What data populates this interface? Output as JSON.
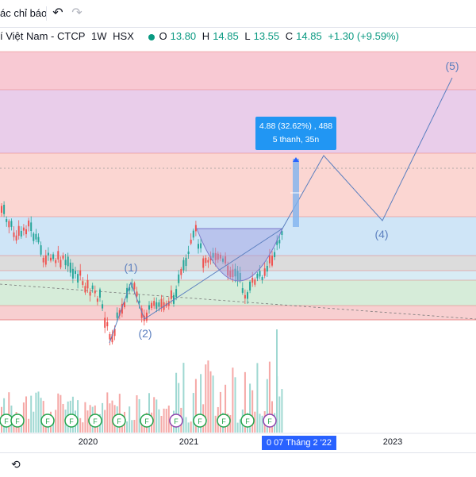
{
  "toolbar": {
    "indicators_label": "ác chỉ báo",
    "undo_icon": "undo-icon",
    "redo_icon": "redo-icon"
  },
  "legend": {
    "symbol": "í Việt Nam - CTCP",
    "interval": "1W",
    "exchange": "HSX",
    "open_label": "O",
    "open": "13.80",
    "high_label": "H",
    "high": "14.85",
    "low_label": "L",
    "low": "13.55",
    "close_label": "C",
    "close": "14.85",
    "change": "+1.30 (+9.59%)"
  },
  "measure": {
    "line1": "4.88 (32.62%) , 488",
    "line2": "5 thanh, 35n"
  },
  "wave_labels": [
    "(1)",
    "(2)",
    "(4)",
    "(5)"
  ],
  "date_badge": {
    "value": "0   07 Tháng 2 '22"
  },
  "chart_data": {
    "type": "candlestick",
    "x_tick_labels": [
      "2020",
      "2021",
      "2023"
    ],
    "event_marker_label": "F",
    "last_bar": {
      "open": 13.8,
      "high": 14.85,
      "low": 13.55,
      "close": 14.85
    },
    "bands": [
      {
        "color": "#f8c9d3"
      },
      {
        "color": "#e9cdea"
      },
      {
        "color": "#fbd6d2"
      },
      {
        "color": "#cfe5f7"
      },
      {
        "color": "#dcdcdc"
      },
      {
        "color": "#d8ecf5"
      },
      {
        "color": "#d6ecd9"
      },
      {
        "color": "#f7cfd0"
      }
    ],
    "colors": {
      "up": "#26a69a",
      "down": "#ef5350",
      "wave": "#5b7fbf"
    }
  },
  "bottom_bar": {
    "icon": "replay-icon"
  }
}
